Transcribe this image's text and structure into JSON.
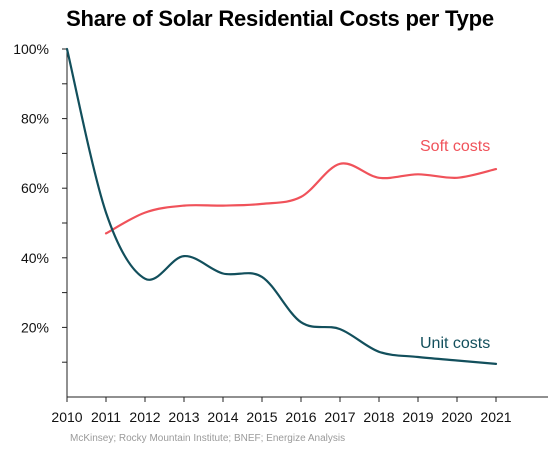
{
  "chart_data": {
    "type": "line",
    "title": "Share of Solar Residential Costs per Type",
    "x": [
      2010,
      2011,
      2012,
      2013,
      2014,
      2015,
      2016,
      2017,
      2018,
      2019,
      2020,
      2021
    ],
    "x_tick_labels": [
      "2010",
      "2011",
      "2012",
      "2013",
      "2014",
      "2015",
      "2016",
      "2017",
      "2018",
      "2019",
      "2020",
      "2021"
    ],
    "ylim": [
      0,
      100
    ],
    "y_ticks": [
      20,
      40,
      60,
      80,
      100
    ],
    "y_tick_labels": [
      "20%",
      "40%",
      "60%",
      "80%",
      "100%"
    ],
    "grid": false,
    "series": [
      {
        "name": "Soft costs",
        "color": "#f0525a",
        "points": [
          [
            2011,
            47
          ],
          [
            2012,
            53
          ],
          [
            2013,
            55
          ],
          [
            2014,
            55
          ],
          [
            2015,
            55.5
          ],
          [
            2016,
            57.5
          ],
          [
            2017,
            67
          ],
          [
            2018,
            63
          ],
          [
            2019,
            64
          ],
          [
            2020,
            63
          ],
          [
            2021,
            65.5
          ]
        ]
      },
      {
        "name": "Unit costs",
        "color": "#124f5c",
        "points": [
          [
            2010,
            100
          ],
          [
            2011,
            53
          ],
          [
            2012,
            34
          ],
          [
            2013,
            40.5
          ],
          [
            2014,
            35.5
          ],
          [
            2015,
            34.5
          ],
          [
            2016,
            21.5
          ],
          [
            2017,
            19.5
          ],
          [
            2018,
            13
          ],
          [
            2019,
            11.5
          ],
          [
            2020,
            10.5
          ],
          [
            2021,
            9.5
          ]
        ]
      }
    ],
    "source": "McKinsey; Rocky Mountain Institute; BNEF; Energize Analysis"
  }
}
